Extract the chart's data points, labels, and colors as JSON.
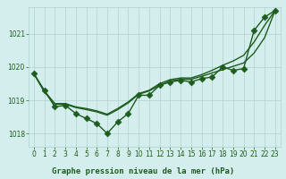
{
  "title": "Graphe pression niveau de la mer (hPa)",
  "background_color": "#d4eeed",
  "grid_color": "#b0d0d0",
  "line_color": "#1e5c1e",
  "ylim": [
    1017.6,
    1021.8
  ],
  "xlim": [
    -0.5,
    23.5
  ],
  "yticks": [
    1018,
    1019,
    1020,
    1021
  ],
  "xticks": [
    0,
    1,
    2,
    3,
    4,
    5,
    6,
    7,
    8,
    9,
    10,
    11,
    12,
    13,
    14,
    15,
    16,
    17,
    18,
    19,
    20,
    21,
    22,
    23
  ],
  "y_zigzag": [
    1019.8,
    1019.3,
    1018.8,
    1018.85,
    1018.6,
    1018.45,
    1018.3,
    1018.0,
    1018.35,
    1018.6,
    1019.15,
    1019.15,
    1019.45,
    1019.55,
    1019.6,
    1019.55,
    1019.65,
    1019.7,
    1020.0,
    1019.9,
    1019.95,
    1021.1,
    1021.5,
    1021.7
  ],
  "y_smooth_low": [
    1019.8,
    1019.25,
    1018.88,
    1018.88,
    1018.78,
    1018.72,
    1018.65,
    1018.55,
    1018.72,
    1018.92,
    1019.18,
    1019.28,
    1019.45,
    1019.58,
    1019.63,
    1019.63,
    1019.72,
    1019.82,
    1019.92,
    1020.02,
    1020.12,
    1020.42,
    1020.88,
    1021.7
  ],
  "y_smooth_high": [
    1019.8,
    1019.28,
    1018.9,
    1018.9,
    1018.8,
    1018.75,
    1018.68,
    1018.58,
    1018.75,
    1018.95,
    1019.2,
    1019.3,
    1019.5,
    1019.62,
    1019.67,
    1019.67,
    1019.77,
    1019.9,
    1020.05,
    1020.18,
    1020.35,
    1020.75,
    1021.25,
    1021.7
  ],
  "marker_size": 3.5,
  "line_width": 1.0,
  "tick_fontsize": 5.5,
  "label_fontsize": 6.5
}
